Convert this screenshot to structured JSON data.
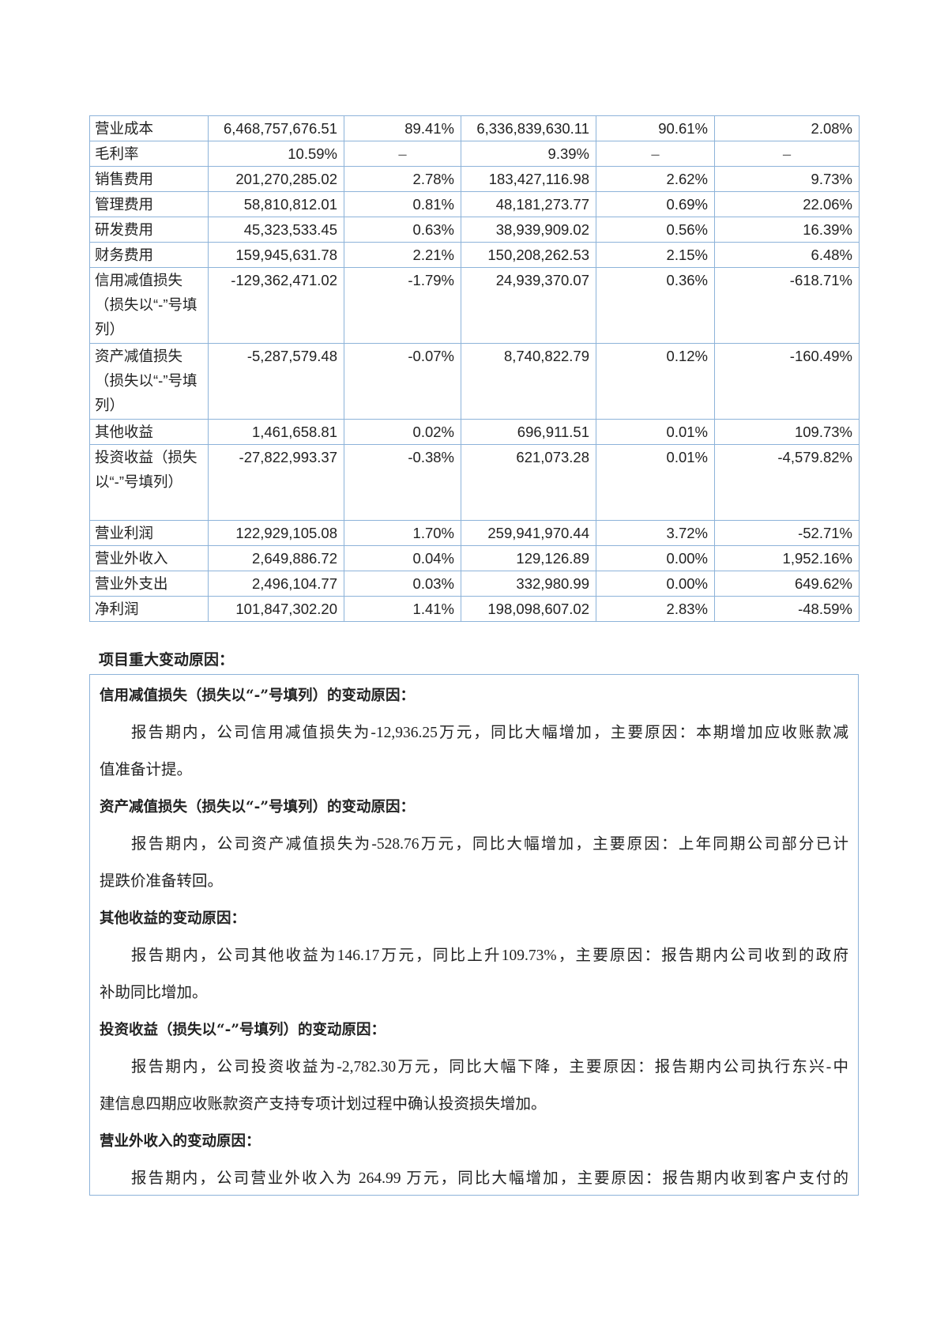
{
  "table": {
    "rows": [
      {
        "label": "营业成本",
        "cur_amount": "6,468,757,676.51",
        "cur_ratio": "89.41%",
        "prev_amount": "6,336,839,630.11",
        "prev_ratio": "90.61%",
        "change": "2.08%",
        "lines": 1
      },
      {
        "label": "毛利率",
        "cur_amount": "10.59%",
        "cur_ratio": "–",
        "prev_amount": "9.39%",
        "prev_ratio": "–",
        "change": "–",
        "lines": 1
      },
      {
        "label": "销售费用",
        "cur_amount": "201,270,285.02",
        "cur_ratio": "2.78%",
        "prev_amount": "183,427,116.98",
        "prev_ratio": "2.62%",
        "change": "9.73%",
        "lines": 1
      },
      {
        "label": "管理费用",
        "cur_amount": "58,810,812.01",
        "cur_ratio": "0.81%",
        "prev_amount": "48,181,273.77",
        "prev_ratio": "0.69%",
        "change": "22.06%",
        "lines": 1
      },
      {
        "label": "研发费用",
        "cur_amount": "45,323,533.45",
        "cur_ratio": "0.63%",
        "prev_amount": "38,939,909.02",
        "prev_ratio": "0.56%",
        "change": "16.39%",
        "lines": 1
      },
      {
        "label": "财务费用",
        "cur_amount": "159,945,631.78",
        "cur_ratio": "2.21%",
        "prev_amount": "150,208,262.53",
        "prev_ratio": "2.15%",
        "change": "6.48%",
        "lines": 1
      },
      {
        "label": "信用减值损失（损失以“-”号填列）",
        "cur_amount": "-129,362,471.02",
        "cur_ratio": "-1.79%",
        "prev_amount": "24,939,370.07",
        "prev_ratio": "0.36%",
        "change": "-618.71%",
        "lines": 3
      },
      {
        "label": "资产减值损失（损失以“-”号填列）",
        "cur_amount": "-5,287,579.48",
        "cur_ratio": "-0.07%",
        "prev_amount": "8,740,822.79",
        "prev_ratio": "0.12%",
        "change": "-160.49%",
        "lines": 3
      },
      {
        "label": "其他收益",
        "cur_amount": "1,461,658.81",
        "cur_ratio": "0.02%",
        "prev_amount": "696,911.51",
        "prev_ratio": "0.01%",
        "change": "109.73%",
        "lines": 1
      },
      {
        "label": "投资收益（损失以“-”号填列）",
        "cur_amount": "-27,822,993.37",
        "cur_ratio": "-0.38%",
        "prev_amount": "621,073.28",
        "prev_ratio": "0.01%",
        "change": "-4,579.82%",
        "lines": 3
      },
      {
        "label": "营业利润",
        "cur_amount": "122,929,105.08",
        "cur_ratio": "1.70%",
        "prev_amount": "259,941,970.44",
        "prev_ratio": "3.72%",
        "change": "-52.71%",
        "lines": 1
      },
      {
        "label": "营业外收入",
        "cur_amount": "2,649,886.72",
        "cur_ratio": "0.04%",
        "prev_amount": "129,126.89",
        "prev_ratio": "0.00%",
        "change": "1,952.16%",
        "lines": 1
      },
      {
        "label": "营业外支出",
        "cur_amount": "2,496,104.77",
        "cur_ratio": "0.03%",
        "prev_amount": "332,980.99",
        "prev_ratio": "0.00%",
        "change": "649.62%",
        "lines": 1
      },
      {
        "label": "净利润",
        "cur_amount": "101,847,302.20",
        "cur_ratio": "1.41%",
        "prev_amount": "198,098,607.02",
        "prev_ratio": "2.83%",
        "change": "-48.59%",
        "lines": 1
      }
    ]
  },
  "reasons": {
    "heading": "项目重大变动原因：",
    "sections": [
      {
        "title": "信用减值损失（损失以“-”号填列）的变动原因：",
        "lines": [
          "报告期内，公司信用减值损失为-12,936.25万元，同比大幅增加，主要原因：本期增加应收账款减",
          "值准备计提。"
        ]
      },
      {
        "title": "资产减值损失（损失以“-”号填列）的变动原因：",
        "lines": [
          "报告期内，公司资产减值损失为-528.76万元，同比大幅增加，主要原因：上年同期公司部分已计",
          "提跌价准备转回。"
        ]
      },
      {
        "title": "其他收益的变动原因：",
        "lines": [
          "报告期内，公司其他收益为146.17万元，同比上升109.73%，主要原因：报告期内公司收到的政府",
          "补助同比增加。"
        ]
      },
      {
        "title": "投资收益（损失以“-”号填列）的变动原因：",
        "lines": [
          "报告期内，公司投资收益为-2,782.30万元，同比大幅下降，主要原因：报告期内公司执行东兴-中",
          "建信息四期应收账款资产支持专项计划过程中确认投资损失增加。"
        ]
      },
      {
        "title": "营业外收入的变动原因：",
        "lines": [
          "报告期内，公司营业外收入为 264.99 万元，同比大幅增加，主要原因：报告期内收到客户支付的"
        ]
      }
    ]
  }
}
